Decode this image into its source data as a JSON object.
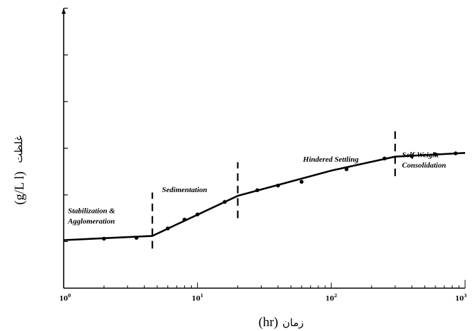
{
  "chart_data": {
    "type": "line",
    "title": "",
    "xlabel": {
      "arabic": "زمان",
      "unit": "(hr)"
    },
    "ylabel": {
      "arabic": "غلظت",
      "unit": "(g/L l)"
    },
    "xscale": "log",
    "xlim": [
      1,
      1000
    ],
    "ylim": [
      0,
      6
    ],
    "grid": false,
    "x_ticks": [
      {
        "base": "10",
        "exp": "0"
      },
      {
        "base": "10",
        "exp": "1"
      },
      {
        "base": "10",
        "exp": "2"
      },
      {
        "base": "10",
        "exp": "3"
      }
    ],
    "series": [
      {
        "line": [
          {
            "x": 1,
            "y": 1.03
          },
          {
            "x": 4.6,
            "y": 1.12
          },
          {
            "x": 20,
            "y": 1.98
          },
          {
            "x": 100,
            "y": 2.52
          },
          {
            "x": 300,
            "y": 2.82
          },
          {
            "x": 1000,
            "y": 2.9
          }
        ],
        "points": [
          {
            "x": 2,
            "y": 1.06
          },
          {
            "x": 3.5,
            "y": 1.08
          },
          {
            "x": 6,
            "y": 1.28
          },
          {
            "x": 8,
            "y": 1.47
          },
          {
            "x": 10,
            "y": 1.58
          },
          {
            "x": 16,
            "y": 1.85
          },
          {
            "x": 28,
            "y": 2.1
          },
          {
            "x": 40,
            "y": 2.2
          },
          {
            "x": 60,
            "y": 2.28
          },
          {
            "x": 130,
            "y": 2.55
          },
          {
            "x": 250,
            "y": 2.78
          },
          {
            "x": 400,
            "y": 2.83
          },
          {
            "x": 600,
            "y": 2.87
          },
          {
            "x": 850,
            "y": 2.89
          }
        ]
      }
    ],
    "phase_boundaries": [
      {
        "x": 4.6,
        "y_from": 0.85,
        "y_to": 2.05
      },
      {
        "x": 20,
        "y_from": 1.5,
        "y_to": 2.7
      },
      {
        "x": 300,
        "y_from": 2.4,
        "y_to": 3.45
      }
    ],
    "annotations": [
      {
        "lines": [
          "Stabilization &",
          "Agglomeration"
        ],
        "x": 1.05,
        "y": 1.55
      },
      {
        "lines": [
          "Sedimentation"
        ],
        "x": 5.3,
        "y": 2.0
      },
      {
        "lines": [
          "Hindered Settling"
        ],
        "x": 60,
        "y": 2.65
      },
      {
        "lines": [
          "Self-Weight",
          "Consolidation"
        ],
        "x": 330,
        "y": 2.75
      }
    ]
  }
}
